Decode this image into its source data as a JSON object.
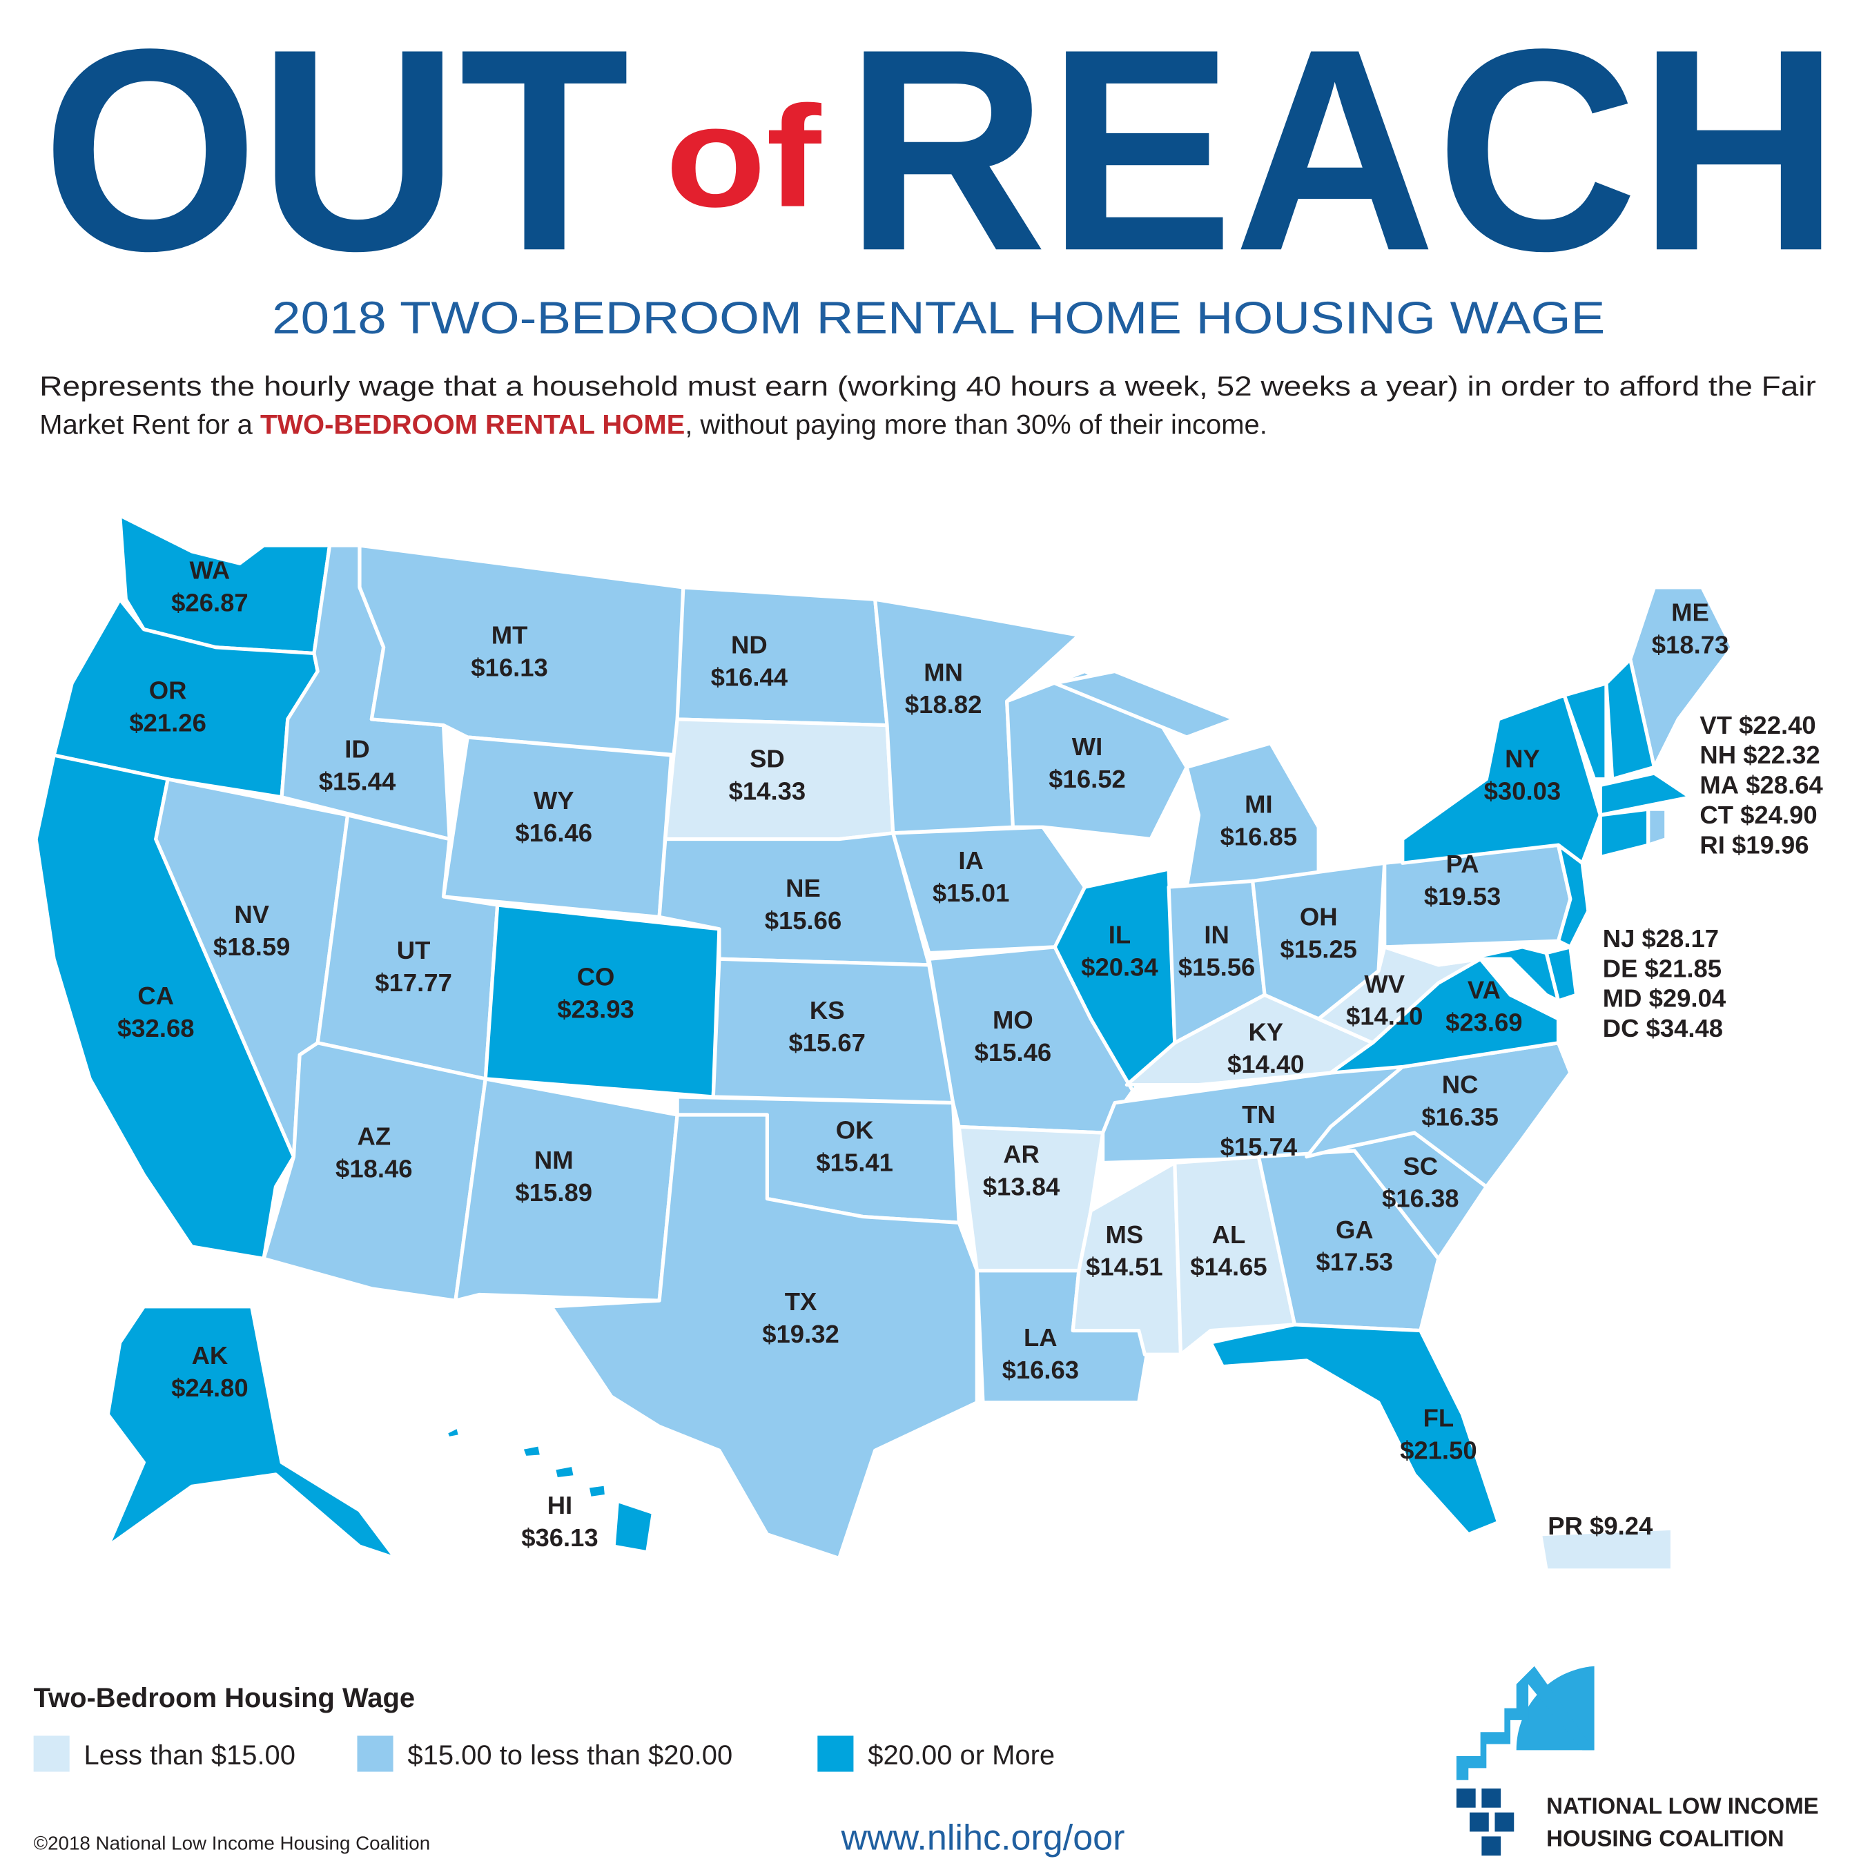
{
  "header": {
    "title_left": "OUT",
    "title_middle": "of",
    "title_right": "REACH",
    "subtitle": "2018 TWO-BEDROOM RENTAL HOME HOUSING WAGE",
    "description": [
      "Represents the hourly wage that a household must earn (working 40 hours a week, 52 weeks a year) in order to afford the Fair",
      "Market Rent for a",
      "TWO-BEDROOM RENTAL HOME",
      ", without paying more than 30% of their income."
    ]
  },
  "states": [
    {
      "abbr": "WA",
      "wage": "$26.87",
      "color": "#00a4dd"
    },
    {
      "abbr": "OR",
      "wage": "$21.26",
      "color": "#00a4dd"
    },
    {
      "abbr": "CA",
      "wage": "$32.68",
      "color": "#00a4dd"
    },
    {
      "abbr": "NV",
      "wage": "$18.59",
      "color": "#93cbef"
    },
    {
      "abbr": "ID",
      "wage": "$15.44",
      "color": "#93cbef"
    },
    {
      "abbr": "MT",
      "wage": "$16.13",
      "color": "#93cbef"
    },
    {
      "abbr": "WY",
      "wage": "$16.46",
      "color": "#93cbef"
    },
    {
      "abbr": "UT",
      "wage": "$17.77",
      "color": "#93cbef"
    },
    {
      "abbr": "CO",
      "wage": "$23.93",
      "color": "#00a4dd"
    },
    {
      "abbr": "AZ",
      "wage": "$18.46",
      "color": "#93cbef"
    },
    {
      "abbr": "NM",
      "wage": "$15.89",
      "color": "#93cbef"
    },
    {
      "abbr": "ND",
      "wage": "$16.44",
      "color": "#93cbef"
    },
    {
      "abbr": "SD",
      "wage": "$14.33",
      "color": "#d5eaf8"
    },
    {
      "abbr": "NE",
      "wage": "$15.66",
      "color": "#93cbef"
    },
    {
      "abbr": "KS",
      "wage": "$15.67",
      "color": "#93cbef"
    },
    {
      "abbr": "OK",
      "wage": "$15.41",
      "color": "#93cbef"
    },
    {
      "abbr": "TX",
      "wage": "$19.32",
      "color": "#93cbef"
    },
    {
      "abbr": "MN",
      "wage": "$18.82",
      "color": "#93cbef"
    },
    {
      "abbr": "IA",
      "wage": "$15.01",
      "color": "#93cbef"
    },
    {
      "abbr": "MO",
      "wage": "$15.46",
      "color": "#93cbef"
    },
    {
      "abbr": "AR",
      "wage": "$13.84",
      "color": "#d5eaf8"
    },
    {
      "abbr": "LA",
      "wage": "$16.63",
      "color": "#93cbef"
    },
    {
      "abbr": "WI",
      "wage": "$16.52",
      "color": "#93cbef"
    },
    {
      "abbr": "IL",
      "wage": "$20.34",
      "color": "#00a4dd"
    },
    {
      "abbr": "MI",
      "wage": "$16.85",
      "color": "#93cbef"
    },
    {
      "abbr": "IN",
      "wage": "$15.56",
      "color": "#93cbef"
    },
    {
      "abbr": "OH",
      "wage": "$15.25",
      "color": "#93cbef"
    },
    {
      "abbr": "KY",
      "wage": "$14.40",
      "color": "#d5eaf8"
    },
    {
      "abbr": "TN",
      "wage": "$15.74",
      "color": "#93cbef"
    },
    {
      "abbr": "MS",
      "wage": "$14.51",
      "color": "#d5eaf8"
    },
    {
      "abbr": "AL",
      "wage": "$14.65",
      "color": "#d5eaf8"
    },
    {
      "abbr": "GA",
      "wage": "$17.53",
      "color": "#93cbef"
    },
    {
      "abbr": "FL",
      "wage": "$21.50",
      "color": "#00a4dd"
    },
    {
      "abbr": "SC",
      "wage": "$16.38",
      "color": "#93cbef"
    },
    {
      "abbr": "NC",
      "wage": "$16.35",
      "color": "#93cbef"
    },
    {
      "abbr": "VA",
      "wage": "$23.69",
      "color": "#00a4dd"
    },
    {
      "abbr": "WV",
      "wage": "$14.10",
      "color": "#d5eaf8"
    },
    {
      "abbr": "PA",
      "wage": "$19.53",
      "color": "#93cbef"
    },
    {
      "abbr": "NY",
      "wage": "$30.03",
      "color": "#00a4dd"
    },
    {
      "abbr": "ME",
      "wage": "$18.73",
      "color": "#93cbef"
    },
    {
      "abbr": "AK",
      "wage": "$24.80",
      "color": "#00a4dd"
    },
    {
      "abbr": "HI",
      "wage": "$36.13",
      "color": "#00a4dd"
    },
    {
      "abbr": "PR",
      "wage": "$9.24",
      "color": "#d5eaf8"
    },
    {
      "abbr": "VT",
      "wage": "$22.40",
      "color": "#00a4dd"
    },
    {
      "abbr": "NH",
      "wage": "$22.32",
      "color": "#00a4dd"
    },
    {
      "abbr": "MA",
      "wage": "$28.64",
      "color": "#00a4dd"
    },
    {
      "abbr": "CT",
      "wage": "$24.90",
      "color": "#00a4dd"
    },
    {
      "abbr": "RI",
      "wage": "$19.96",
      "color": "#93cbef"
    },
    {
      "abbr": "NJ",
      "wage": "$28.17",
      "color": "#00a4dd"
    },
    {
      "abbr": "DE",
      "wage": "$21.85",
      "color": "#00a4dd"
    },
    {
      "abbr": "MD",
      "wage": "$29.04",
      "color": "#00a4dd"
    },
    {
      "abbr": "DC",
      "wage": "$34.48",
      "color": "#00a4dd"
    }
  ],
  "legend": {
    "title": "Two-Bedroom Housing Wage",
    "items": [
      {
        "label": "Less than $15.00",
        "color": "#d5eaf8"
      },
      {
        "label": "$15.00 to less than $20.00",
        "color": "#93cbef"
      },
      {
        "label": "$20.00 or More",
        "color": "#00a4dd"
      }
    ]
  },
  "footer": {
    "copyright": "©2018 National Low Income Housing Coalition",
    "url": "www.nlihc.org/oor",
    "org_line1": "NATIONAL LOW INCOME",
    "org_line2": "HOUSING COALITION"
  }
}
